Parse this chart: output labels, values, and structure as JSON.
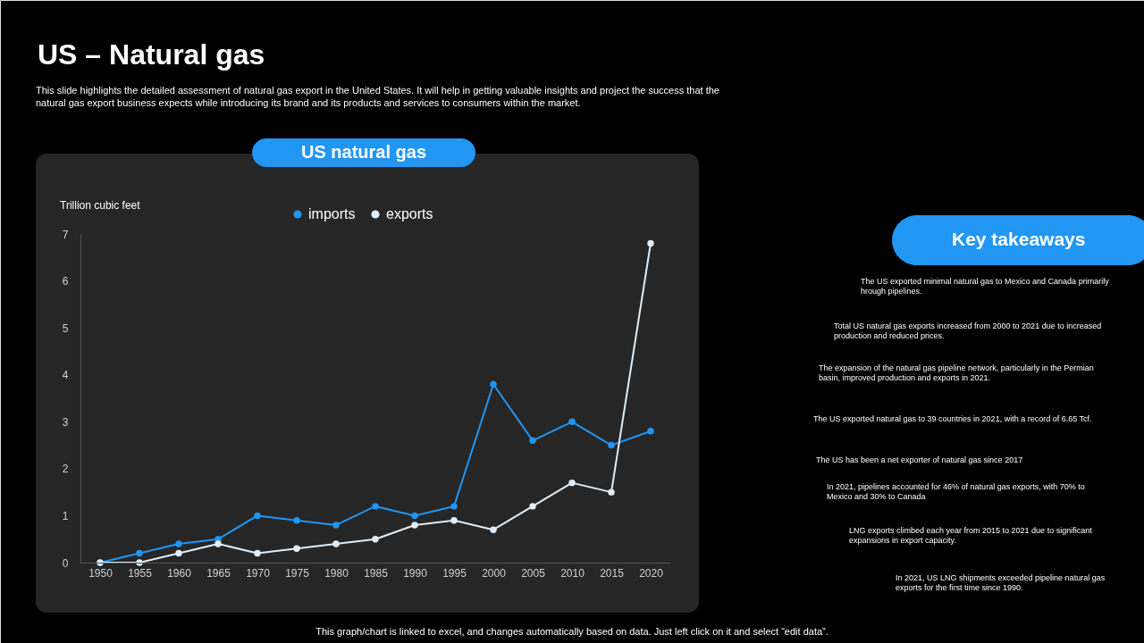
{
  "chart_data": {
    "type": "line",
    "title": "US – Natural gas",
    "subtitle": "US natural gas",
    "ylabel": "Trillion cubic feet",
    "annotations": [
      "This slide highlights the detailed assessment of natural gas export in the United States. It will help in getting valuable insights and project the success that the natural gas export business expects while introducing its brand and its products and services to consumers within the market.",
      "Key takeaways",
      "The US exported minimal natural gas to Mexico and Canada primarily hrough pipelines.",
      "Total US natural gas exports increased from 2000 to 2021 due to increased production and reduced prices.",
      "The expansion of the natural gas pipeline network, particularly in the Permian basin, improved production and exports in 2021.",
      "The US exported natural gas to 39 countries in 2021, with a record of 6.65 Tcf.",
      "The US has been a net exporter of natural gas since 2017",
      "In 2021, pipelines accounted for 46% of natural gas exports, with 70% to Mexico and 30% to Canada",
      "LNG exports climbed each year from 2015 to 2021 due to significant expansions in export capacity.",
      "In 2021, US LNG shipments exceeded pipeline natural gas exports for the first time since 1990.",
      "This graph/chart is linked to excel, and changes automatically based on data. Just left click on it and select “edit data”."
    ],
    "categories": [
      "1950",
      "1955",
      "1960",
      "1965",
      "1970",
      "1975",
      "1980",
      "1985",
      "1990",
      "1995",
      "2000",
      "2005",
      "2010",
      "2015",
      "2020"
    ],
    "series": [
      {
        "name": "imports",
        "color": "#2196f3",
        "values": [
          0,
          0.2,
          0.4,
          0.5,
          1.0,
          0.9,
          0.8,
          1.2,
          1.0,
          1.2,
          3.8,
          2.6,
          3.0,
          2.5,
          2.8
        ]
      },
      {
        "name": "exports",
        "color": "#deeefb",
        "values": [
          0,
          0,
          0.2,
          0.4,
          0.2,
          0.3,
          0.4,
          0.5,
          0.8,
          0.9,
          0.7,
          1.2,
          1.7,
          1.5,
          6.8
        ]
      }
    ],
    "ylim": [
      0,
      7
    ],
    "yticks": [
      0,
      1,
      2,
      3,
      4,
      5,
      6,
      7
    ],
    "grid": false,
    "legend": "top",
    "marker": "circle",
    "line_style": "solid"
  }
}
